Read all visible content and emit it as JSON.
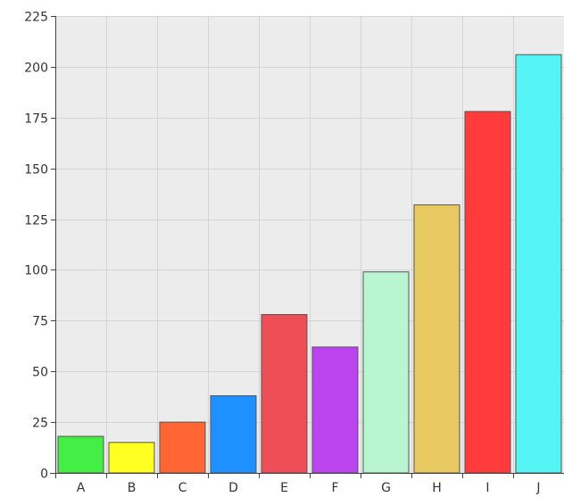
{
  "chart_data": {
    "type": "bar",
    "title": "",
    "xlabel": "",
    "ylabel": "",
    "categories": [
      "A",
      "B",
      "C",
      "D",
      "E",
      "F",
      "G",
      "H",
      "I",
      "J"
    ],
    "values": [
      18,
      15,
      25,
      38,
      78,
      62,
      99,
      132,
      178,
      206
    ],
    "ylim": [
      0,
      225
    ],
    "yticks": [
      "0",
      "25",
      "50",
      "75",
      "100",
      "125",
      "150",
      "175",
      "200",
      "225"
    ],
    "ytick_values": [
      0,
      25,
      50,
      75,
      100,
      125,
      150,
      175,
      200,
      225
    ],
    "colors": [
      "#44ee44",
      "#ffff22",
      "#ff6633",
      "#1e90ff",
      "#ee4e55",
      "#bb44ee",
      "#b8f5d0",
      "#e8c860",
      "#ff3b3b",
      "#55f5f5"
    ],
    "grid": true,
    "legend": "none",
    "plot_background": "#ececec",
    "grid_color": "#d4d4d4"
  }
}
